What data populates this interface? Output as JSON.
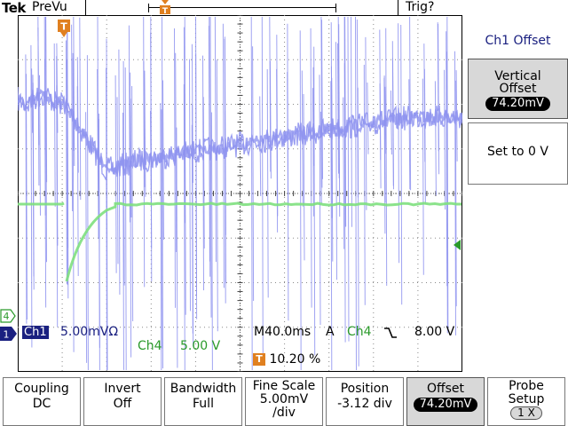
{
  "header": {
    "brand": "Tek",
    "status": "PreVu",
    "trigger_label": "Trig?"
  },
  "right_menu": {
    "title": "Ch1 Offset",
    "vertical_offset": {
      "label_line1": "Vertical",
      "label_line2": "Offset",
      "value": "74.20mV"
    },
    "set_to_zero": {
      "label": "Set to 0 V"
    }
  },
  "readouts": {
    "ch1_channel": "Ch1",
    "ch1_scale": "5.00mVΩ",
    "ch4_channel": "Ch4",
    "ch4_scale": "5.00 V",
    "timebase": "M40.0ms",
    "trigger_mode": "A",
    "trigger_source": "Ch4",
    "trigger_slope_icon": "falling-edge-icon",
    "trigger_level": "8.00 V",
    "trigger_position_badge": "T",
    "trigger_position": "10.20 %"
  },
  "markers": {
    "ch1": "1",
    "ch4": "4",
    "trigger_top": "T"
  },
  "bottom_menu": [
    {
      "line1": "Coupling",
      "line2": "DC"
    },
    {
      "line1": "Invert",
      "line2": "Off"
    },
    {
      "line1": "Bandwidth",
      "line2": "Full"
    },
    {
      "line1": "Fine Scale",
      "line2": "5.00mV",
      "line3": "/div"
    },
    {
      "line1": "Position",
      "line2": "-3.12 div"
    },
    {
      "line1": "Offset",
      "line2": "74.20mV"
    },
    {
      "line1": "Probe",
      "line2": "Setup",
      "line3": "1 X"
    }
  ],
  "colors": {
    "ch1": "#8f93f0",
    "ch4": "#7ee07e",
    "readout_blue": "#1a2080",
    "ch4_text": "#2a9a2a",
    "trigger_orange": "#e08020"
  }
}
